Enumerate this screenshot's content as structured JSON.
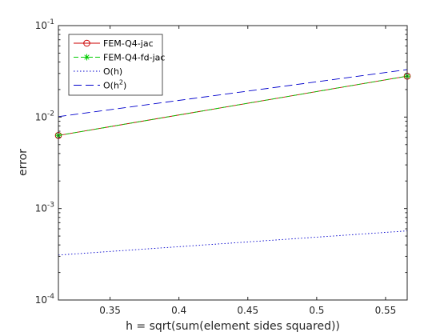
{
  "chart_data": {
    "type": "line",
    "title": "",
    "xlabel": "h = sqrt(sum(element sides squared))",
    "ylabel": "error",
    "xlim": [
      0.3125,
      0.5657
    ],
    "ylim": [
      0.0001,
      0.1
    ],
    "yscale": "log",
    "grid": false,
    "legend_position": "top-left",
    "xticks": [
      {
        "value": 0.35,
        "label": "0.35"
      },
      {
        "value": 0.4,
        "label": "0.4"
      },
      {
        "value": 0.45,
        "label": "0.45"
      },
      {
        "value": 0.5,
        "label": "0.5"
      },
      {
        "value": 0.55,
        "label": "0.55"
      }
    ],
    "yticks": [
      {
        "value": 0.0001,
        "base": "10",
        "exp": "-4"
      },
      {
        "value": 0.001,
        "base": "10",
        "exp": "-3"
      },
      {
        "value": 0.01,
        "base": "10",
        "exp": "-2"
      },
      {
        "value": 0.1,
        "base": "10",
        "exp": "-1"
      }
    ],
    "series": [
      {
        "name": "FEM-Q4-jac",
        "name_sup": "",
        "color": "#cc0000",
        "dash": "solid",
        "marker": "circle",
        "x": [
          0.3125,
          0.5657
        ],
        "y": [
          0.0063,
          0.028
        ]
      },
      {
        "name": "FEM-Q4-fd-jac",
        "name_sup": "",
        "color": "#00cc00",
        "dash": "dashed",
        "marker": "star",
        "x": [
          0.3125,
          0.5657
        ],
        "y": [
          0.0063,
          0.028
        ]
      },
      {
        "name": "O(h)",
        "name_sup": "",
        "color": "#0000cc",
        "dash": "dotted",
        "marker": "none",
        "x": [
          0.3125,
          0.5657
        ],
        "y": [
          0.00031,
          0.00057
        ]
      },
      {
        "name": "O(h",
        "name_sup": "2",
        "name_suffix": ")",
        "color": "#0000cc",
        "dash": "longdash",
        "marker": "none",
        "x": [
          0.3125,
          0.5657
        ],
        "y": [
          0.0101,
          0.033
        ]
      }
    ]
  }
}
